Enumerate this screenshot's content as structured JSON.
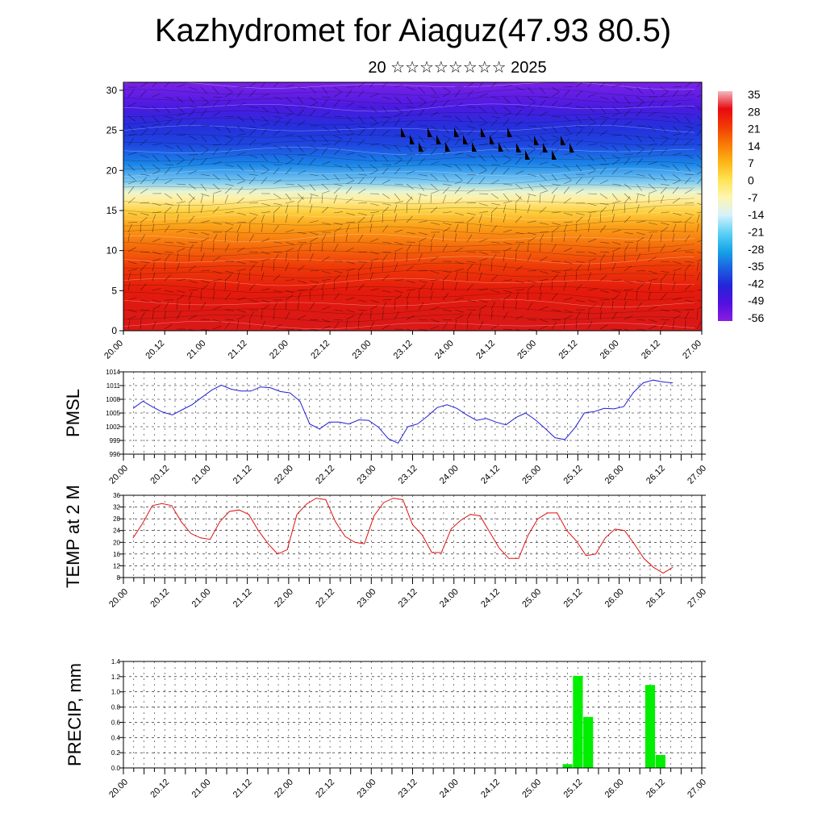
{
  "header": {
    "title": "Kazhydromet for Aiaguz(47.93 80.5)",
    "subtitle": "20 ☆☆☆☆☆☆☆☆ 2025"
  },
  "colors": {
    "pmsl_line": "#1f1fd6",
    "temp_line": "#e01010",
    "precip_bar": "#00ee00"
  },
  "chart_data": [
    {
      "type": "heatmap",
      "name": "cross-section",
      "x_tick_labels": [
        "20.00",
        "20.12",
        "21.00",
        "21.12",
        "22.00",
        "22.12",
        "23.00",
        "23.12",
        "24.00",
        "24.12",
        "25.00",
        "25.12",
        "26.00",
        "26.12",
        "27.00"
      ],
      "y_ticks": [
        0,
        5,
        10,
        15,
        20,
        25,
        30
      ],
      "ylim": [
        0,
        31
      ],
      "colorbar_labels": [
        "35",
        "28",
        "21",
        "14",
        "7",
        "0",
        "-7",
        "-14",
        "-21",
        "-28",
        "-35",
        "-42",
        "-49",
        "-56"
      ],
      "colorbar_colors": [
        "#f2b8c0",
        "#e80a10",
        "#f23a05",
        "#f97a06",
        "#fdb416",
        "#fee354",
        "#fff6b0",
        "#d6f2fb",
        "#5fd2f6",
        "#18a6e8",
        "#1a62e0",
        "#2424d8",
        "#5210e0",
        "#8a1ee0"
      ]
    },
    {
      "type": "line",
      "name": "pmsl",
      "ylabel": "PMSL",
      "x_tick_labels": [
        "20.00",
        "20.12",
        "21.00",
        "21.12",
        "22.00",
        "22.12",
        "23.00",
        "23.12",
        "24.00",
        "24.12",
        "25.00",
        "25.12",
        "26.00",
        "26.12",
        "27.00"
      ],
      "y_ticks": [
        996,
        999,
        1002,
        1005,
        1008,
        1011,
        1014
      ],
      "ylim": [
        996,
        1014
      ],
      "values": [
        1006.0,
        1007.6,
        1006.3,
        1005.2,
        1004.6,
        1005.7,
        1006.8,
        1008.4,
        1010.0,
        1011.1,
        1010.2,
        1009.8,
        1009.8,
        1010.7,
        1010.5,
        1009.7,
        1009.4,
        1007.6,
        1002.6,
        1001.5,
        1003.0,
        1003.0,
        1002.6,
        1003.5,
        1003.4,
        1001.9,
        999.4,
        998.4,
        1002.0,
        1002.6,
        1004.3,
        1006.2,
        1006.8,
        1006.0,
        1004.6,
        1003.4,
        1003.8,
        1003.0,
        1002.4,
        1004.0,
        1005.0,
        1003.5,
        1001.6,
        999.6,
        999.2,
        1001.7,
        1005.0,
        1005.3,
        1006.0,
        1005.9,
        1006.4,
        1009.5,
        1011.6,
        1012.2,
        1011.8,
        1011.6
      ]
    },
    {
      "type": "line",
      "name": "temp2m",
      "ylabel": "TEMP at 2 M",
      "x_tick_labels": [
        "20.00",
        "20.12",
        "21.00",
        "21.12",
        "22.00",
        "22.12",
        "23.00",
        "23.12",
        "24.00",
        "24.12",
        "25.00",
        "25.12",
        "26.00",
        "26.12",
        "27.00"
      ],
      "y_ticks": [
        8,
        12,
        16,
        20,
        24,
        28,
        32,
        36
      ],
      "ylim": [
        8,
        36
      ],
      "values": [
        21.5,
        26.5,
        32.5,
        33.2,
        32.5,
        27.0,
        23.0,
        21.5,
        21.0,
        27.0,
        30.5,
        31.0,
        29.5,
        24.0,
        19.5,
        16.0,
        17.5,
        29.5,
        33.0,
        35.0,
        34.5,
        27.0,
        22.0,
        20.0,
        19.5,
        29.0,
        33.5,
        35.0,
        34.5,
        26.0,
        22.5,
        16.5,
        16.5,
        24.5,
        27.5,
        29.5,
        29.0,
        23.5,
        18.0,
        14.5,
        14.5,
        22.5,
        28.0,
        30.0,
        30.0,
        24.0,
        20.5,
        15.5,
        16.0,
        21.5,
        24.5,
        24.0,
        19.5,
        14.5,
        11.5,
        9.5,
        11.5
      ]
    },
    {
      "type": "bar",
      "name": "precip",
      "ylabel": "PRECIP, mm",
      "x_tick_labels": [
        "20.00",
        "20.12",
        "21.00",
        "21.12",
        "22.00",
        "22.12",
        "23.00",
        "23.12",
        "24.00",
        "24.12",
        "25.00",
        "25.12",
        "26.00",
        "26.12",
        "27.00"
      ],
      "y_ticks": [
        "0.0",
        "0.2",
        "0.4",
        "0.6",
        "0.8",
        "1.0",
        "1.2",
        "1.4"
      ],
      "ylim": [
        0,
        1.4
      ],
      "bars": [
        {
          "x": 25.375,
          "value": 0.05
        },
        {
          "x": 25.5,
          "value": 1.21
        },
        {
          "x": 25.625,
          "value": 0.67
        },
        {
          "x": 26.375,
          "value": 1.09
        },
        {
          "x": 26.5,
          "value": 0.17
        }
      ]
    }
  ]
}
